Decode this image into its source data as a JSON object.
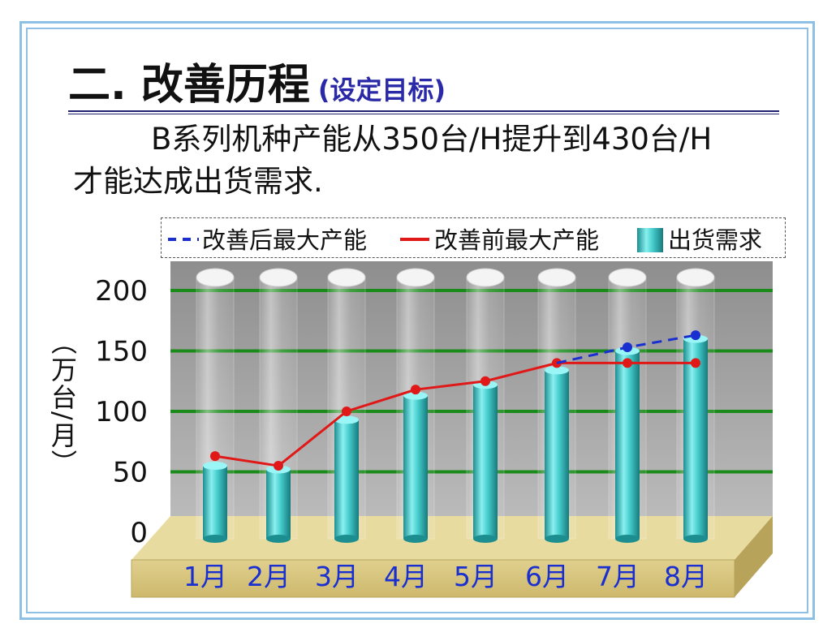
{
  "title": {
    "main": "二. 改善历程",
    "sub": "(设定目标)"
  },
  "description": {
    "line1": "B系列机种产能从350台/H提升到430台/H",
    "line2": "才能达成出货需求."
  },
  "colors": {
    "after_line": "#1a2fd0",
    "before_line": "#e01818",
    "bars": "#3cc8c8",
    "gridline": "#1a8a1a",
    "floor": "#d4c07a",
    "plot_bg": "#a9a9a9"
  },
  "chart_data": {
    "type": "bar",
    "categories": [
      "1月",
      "2月",
      "3月",
      "4月",
      "5月",
      "6月",
      "7月",
      "8月"
    ],
    "ylabel": "（万台/月）",
    "ylim": [
      0,
      200
    ],
    "yticks": [
      0,
      50,
      100,
      150,
      200
    ],
    "grid": true,
    "legend_position": "top",
    "series": [
      {
        "name": "出货需求",
        "kind": "bar",
        "values": [
          55,
          52,
          93,
          113,
          122,
          134,
          150,
          160
        ]
      },
      {
        "name": "改善前最大产能",
        "kind": "line",
        "style": "solid",
        "values": [
          63,
          55,
          100,
          118,
          125,
          140,
          140,
          140
        ]
      },
      {
        "name": "改善后最大产能",
        "kind": "line",
        "style": "dashed",
        "values": [
          null,
          null,
          null,
          null,
          null,
          140,
          153,
          163
        ]
      }
    ]
  }
}
